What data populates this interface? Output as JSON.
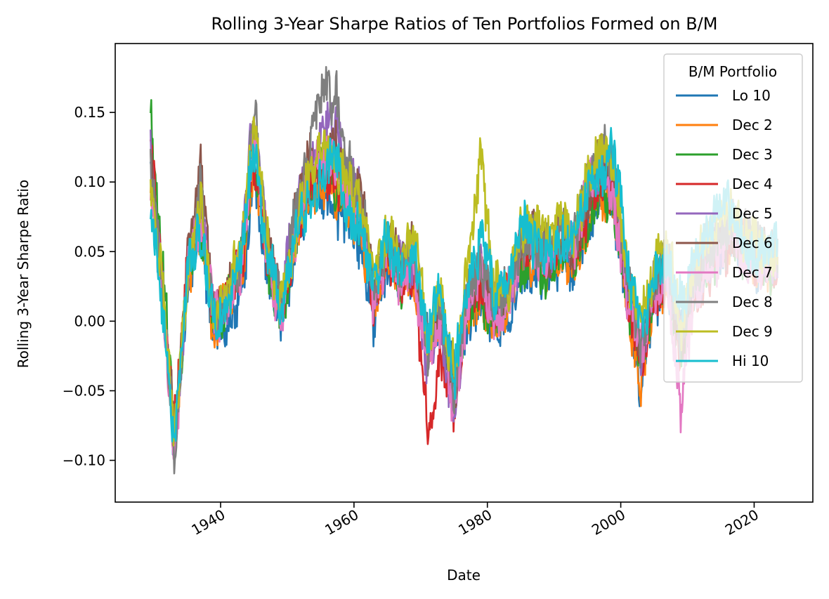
{
  "chart_data": {
    "type": "line",
    "title": "Rolling 3-Year Sharpe Ratios of Ten Portfolios Formed on B/M",
    "xlabel": "Date",
    "ylabel": "Rolling 3-Year Sharpe Ratio",
    "xlim": [
      1924.2,
      2028.8
    ],
    "ylim": [
      -0.13,
      0.1995
    ],
    "xticks": [
      1940,
      1960,
      1980,
      2000,
      2020
    ],
    "xtick_labels": [
      "1940",
      "1960",
      "1980",
      "2000",
      "2020"
    ],
    "yticks": [
      -0.1,
      -0.05,
      0.0,
      0.05,
      0.1,
      0.15
    ],
    "ytick_labels": [
      "−0.10",
      "−0.05",
      "0.00",
      "0.05",
      "0.10",
      "0.15"
    ],
    "grid": false,
    "legend": {
      "title": "B/M Portfolio",
      "placement": "upper-right"
    },
    "x": [
      1929.5,
      1931,
      1932.5,
      1933,
      1935,
      1937,
      1939,
      1941,
      1943,
      1945,
      1947,
      1949,
      1951,
      1953,
      1955,
      1957,
      1959,
      1961,
      1963,
      1965,
      1967,
      1969,
      1971,
      1973,
      1975,
      1977,
      1979,
      1981,
      1983,
      1985,
      1987,
      1989,
      1991,
      1993,
      1995,
      1997,
      1999,
      2001,
      2003,
      2005,
      2007,
      2009,
      2011,
      2013,
      2015,
      2017,
      2019,
      2021,
      2023.5
    ],
    "series": [
      {
        "name": "Lo 10",
        "color": "#1f77b4",
        "values": [
          0.11,
          0.03,
          -0.05,
          -0.1,
          0.02,
          0.06,
          -0.01,
          0.0,
          0.02,
          0.1,
          0.04,
          -0.01,
          0.05,
          0.08,
          0.09,
          0.08,
          0.07,
          0.06,
          0.0,
          0.04,
          0.02,
          0.03,
          -0.01,
          0.0,
          -0.04,
          0.0,
          0.01,
          0.0,
          0.0,
          0.03,
          0.04,
          0.03,
          0.05,
          0.04,
          0.07,
          0.09,
          0.08,
          0.01,
          -0.05,
          0.02,
          0.03,
          -0.01,
          0.02,
          0.04,
          0.05,
          0.06,
          0.05,
          0.04,
          0.04
        ]
      },
      {
        "name": "Dec 2",
        "color": "#ff7f0e",
        "values": [
          0.1,
          0.03,
          -0.05,
          -0.09,
          0.03,
          0.07,
          -0.01,
          0.01,
          0.03,
          0.11,
          0.05,
          0.0,
          0.05,
          0.09,
          0.1,
          0.09,
          0.08,
          0.07,
          0.01,
          0.04,
          0.03,
          0.03,
          -0.02,
          0.0,
          -0.05,
          0.01,
          0.02,
          0.0,
          0.01,
          0.04,
          0.05,
          0.03,
          0.05,
          0.04,
          0.07,
          0.09,
          0.08,
          0.01,
          -0.04,
          0.02,
          0.03,
          -0.02,
          0.02,
          0.04,
          0.05,
          0.06,
          0.05,
          0.04,
          0.04
        ]
      },
      {
        "name": "Dec 3",
        "color": "#2ca02c",
        "values": [
          0.15,
          0.06,
          -0.04,
          -0.08,
          0.03,
          0.07,
          0.0,
          0.02,
          0.04,
          0.12,
          0.05,
          0.0,
          0.05,
          0.09,
          0.11,
          0.1,
          0.08,
          0.07,
          0.02,
          0.05,
          0.03,
          0.04,
          -0.02,
          0.01,
          -0.05,
          0.01,
          0.02,
          0.0,
          0.01,
          0.04,
          0.05,
          0.03,
          0.06,
          0.04,
          0.07,
          0.09,
          0.08,
          0.02,
          -0.03,
          0.02,
          0.03,
          -0.02,
          0.02,
          0.04,
          0.05,
          0.06,
          0.05,
          0.04,
          0.04
        ]
      },
      {
        "name": "Dec 4",
        "color": "#d62728",
        "values": [
          0.13,
          0.05,
          -0.04,
          -0.08,
          0.04,
          0.08,
          0.0,
          0.02,
          0.04,
          0.12,
          0.05,
          0.0,
          0.06,
          0.1,
          0.11,
          0.1,
          0.09,
          0.08,
          0.01,
          0.05,
          0.03,
          0.04,
          -0.08,
          -0.03,
          -0.06,
          0.01,
          0.03,
          0.01,
          0.02,
          0.05,
          0.06,
          0.04,
          0.06,
          0.05,
          0.08,
          0.1,
          0.09,
          0.02,
          -0.03,
          0.02,
          0.03,
          -0.02,
          0.02,
          0.04,
          0.05,
          0.06,
          0.05,
          0.04,
          0.04
        ]
      },
      {
        "name": "Dec 5",
        "color": "#9467bd",
        "values": [
          0.12,
          0.04,
          -0.05,
          -0.09,
          0.03,
          0.09,
          0.0,
          0.01,
          0.04,
          0.16,
          0.06,
          0.01,
          0.07,
          0.11,
          0.13,
          0.14,
          0.11,
          0.09,
          0.02,
          0.06,
          0.04,
          0.04,
          -0.03,
          0.0,
          -0.08,
          0.02,
          0.04,
          0.01,
          0.02,
          0.05,
          0.06,
          0.04,
          0.07,
          0.05,
          0.09,
          0.11,
          0.1,
          0.03,
          -0.02,
          0.03,
          0.04,
          -0.02,
          0.03,
          0.04,
          0.05,
          0.06,
          0.05,
          0.04,
          0.04
        ]
      },
      {
        "name": "Dec 6",
        "color": "#8c564b",
        "values": [
          0.12,
          0.04,
          -0.05,
          -0.09,
          0.04,
          0.12,
          0.01,
          0.02,
          0.04,
          0.14,
          0.06,
          0.01,
          0.07,
          0.11,
          0.12,
          0.13,
          0.1,
          0.09,
          0.02,
          0.06,
          0.04,
          0.05,
          -0.02,
          0.01,
          -0.05,
          0.02,
          0.04,
          0.01,
          0.02,
          0.05,
          0.06,
          0.05,
          0.07,
          0.05,
          0.09,
          0.12,
          0.1,
          0.03,
          -0.02,
          0.03,
          0.04,
          -0.02,
          0.03,
          0.05,
          0.06,
          0.06,
          0.05,
          0.05,
          0.05
        ]
      },
      {
        "name": "Dec 7",
        "color": "#e377c2",
        "values": [
          0.1,
          0.03,
          -0.06,
          -0.11,
          0.03,
          0.08,
          0.0,
          0.01,
          0.03,
          0.13,
          0.05,
          0.0,
          0.06,
          0.1,
          0.12,
          0.12,
          0.09,
          0.08,
          0.01,
          0.05,
          0.03,
          0.04,
          -0.03,
          0.0,
          -0.06,
          0.01,
          0.03,
          0.0,
          0.01,
          0.05,
          0.06,
          0.04,
          0.07,
          0.05,
          0.1,
          0.11,
          0.09,
          0.02,
          -0.02,
          0.02,
          0.03,
          -0.06,
          0.02,
          0.04,
          0.05,
          0.06,
          0.05,
          0.04,
          0.04
        ]
      },
      {
        "name": "Dec 8",
        "color": "#7f7f7f",
        "values": [
          0.11,
          0.04,
          -0.05,
          -0.1,
          0.03,
          0.1,
          0.0,
          0.01,
          0.04,
          0.15,
          0.06,
          0.01,
          0.07,
          0.12,
          0.16,
          0.17,
          0.11,
          0.09,
          0.02,
          0.06,
          0.04,
          0.05,
          -0.02,
          0.01,
          -0.05,
          0.02,
          0.04,
          0.01,
          0.02,
          0.05,
          0.06,
          0.05,
          0.07,
          0.06,
          0.1,
          0.12,
          0.11,
          0.03,
          -0.02,
          0.03,
          0.05,
          -0.01,
          0.03,
          0.05,
          0.06,
          0.07,
          0.06,
          0.05,
          0.05
        ]
      },
      {
        "name": "Dec 9",
        "color": "#bcbd22",
        "values": [
          0.1,
          0.04,
          -0.05,
          -0.09,
          0.03,
          0.08,
          0.0,
          0.02,
          0.05,
          0.14,
          0.06,
          0.01,
          0.06,
          0.1,
          0.12,
          0.12,
          0.1,
          0.08,
          0.03,
          0.07,
          0.05,
          0.06,
          -0.01,
          0.02,
          -0.04,
          0.04,
          0.12,
          0.02,
          0.03,
          0.06,
          0.07,
          0.06,
          0.08,
          0.06,
          0.1,
          0.12,
          0.11,
          0.04,
          -0.01,
          0.04,
          0.06,
          0.0,
          0.04,
          0.06,
          0.07,
          0.07,
          0.06,
          0.05,
          0.05
        ]
      },
      {
        "name": "Hi 10",
        "color": "#17becf",
        "values": [
          0.08,
          0.02,
          -0.06,
          -0.1,
          0.04,
          0.06,
          0.0,
          0.01,
          0.05,
          0.12,
          0.05,
          0.0,
          0.06,
          0.09,
          0.1,
          0.12,
          0.08,
          0.07,
          0.02,
          0.06,
          0.04,
          0.05,
          -0.01,
          0.02,
          -0.04,
          0.02,
          0.06,
          0.02,
          0.03,
          0.07,
          0.06,
          0.05,
          0.06,
          0.06,
          0.09,
          0.11,
          0.12,
          0.04,
          -0.01,
          0.03,
          0.05,
          0.01,
          0.04,
          0.06,
          0.08,
          0.08,
          0.05,
          0.05,
          0.05
        ]
      }
    ]
  }
}
